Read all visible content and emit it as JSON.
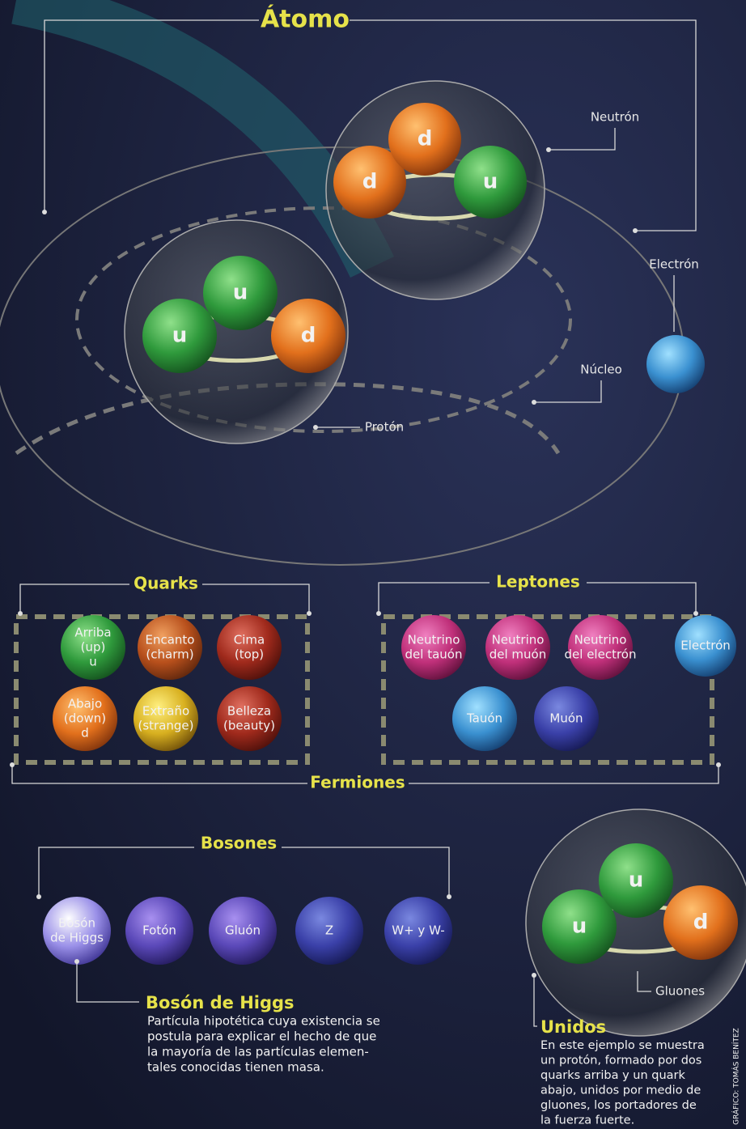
{
  "title": "Átomo",
  "atom": {
    "neutron": {
      "label": "Neutrón",
      "quarks": [
        "d",
        "d",
        "u"
      ]
    },
    "proton": {
      "label": "Protón",
      "quarks": [
        "u",
        "u",
        "d"
      ]
    },
    "electron": "Electrón",
    "nucleus": "Núcleo"
  },
  "fermions": {
    "label": "Fermiones",
    "quarks": {
      "label": "Quarks",
      "items": [
        [
          "Arriba",
          "(up)",
          "u"
        ],
        [
          "Encanto",
          "(charm)"
        ],
        [
          "Cima",
          "(top)"
        ],
        [
          "Abajo",
          "(down)",
          "d"
        ],
        [
          "Extraño",
          "(strange)"
        ],
        [
          "Belleza",
          "(beauty)"
        ]
      ]
    },
    "leptons": {
      "label": "Leptones",
      "items": [
        [
          "Neutrino",
          "del tauón"
        ],
        [
          "Neutrino",
          "del muón"
        ],
        [
          "Neutrino",
          "del electrón"
        ],
        [
          "Electrón"
        ],
        [
          "Tauón"
        ],
        [
          "Muón"
        ]
      ]
    }
  },
  "bosons": {
    "label": "Bosones",
    "items": [
      [
        "Bosón",
        "de Higgs"
      ],
      [
        "Fotón"
      ],
      [
        "Gluón"
      ],
      [
        "Z"
      ],
      [
        "W+ y W-"
      ]
    ]
  },
  "higgs_note": {
    "title": "Bosón de Higgs",
    "lines": [
      "Partícula hipotética cuya existencia se",
      "postula para explicar el hecho de que",
      "la mayoría de las partículas elemen-",
      "tales conocidas tienen masa."
    ]
  },
  "unidos": {
    "quarks": [
      "u",
      "u",
      "d"
    ],
    "gluons": "Gluones",
    "title": "Unidos",
    "lines": [
      "En este ejemplo se muestra",
      "un protón, formado por dos",
      "quarks arriba y un quark",
      "abajo, unidos por medio de",
      "gluones, los portadores de",
      "la fuerza fuerte."
    ]
  },
  "credit": "GRÁFICO: TOMÁS BENÍTEZ"
}
